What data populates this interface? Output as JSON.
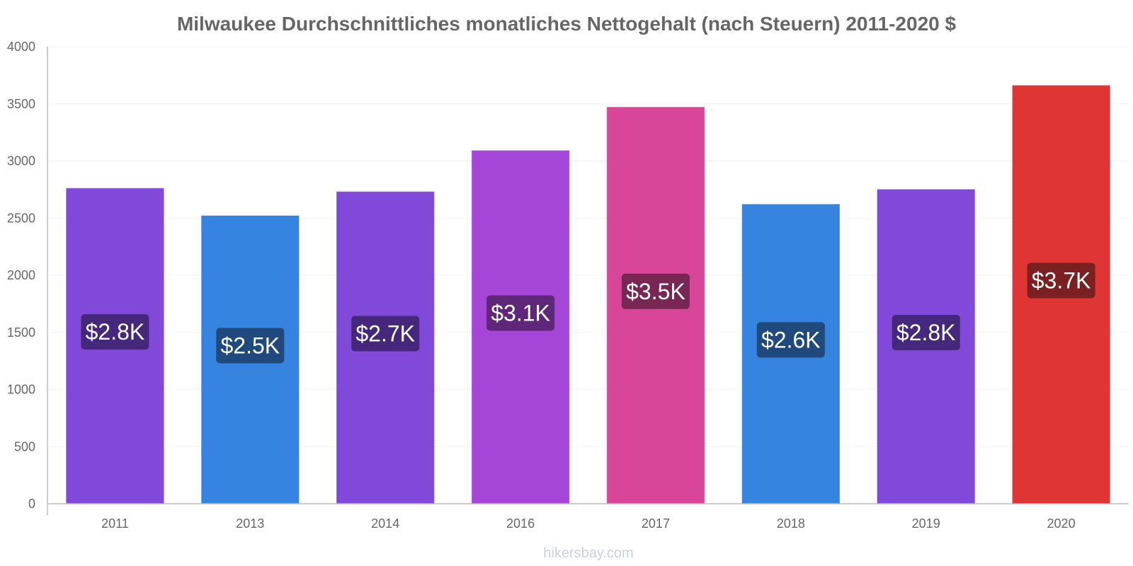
{
  "chart_data": {
    "type": "bar",
    "title": "Milwaukee Durchschnittliches monatliches Nettogehalt (nach Steuern) 2011-2020 $",
    "xlabel": "",
    "ylabel": "",
    "categories": [
      "2011",
      "2013",
      "2014",
      "2016",
      "2017",
      "2018",
      "2019",
      "2020"
    ],
    "values": [
      2760,
      2520,
      2730,
      3090,
      3470,
      2620,
      2750,
      3660
    ],
    "value_labels": [
      "$2.8K",
      "$2.5K",
      "$2.7K",
      "$3.1K",
      "$3.5K",
      "$2.6K",
      "$2.8K",
      "$3.7K"
    ],
    "bar_colors": [
      "#8049da",
      "#3584e0",
      "#8049da",
      "#a646d8",
      "#d84699",
      "#3584e0",
      "#8049da",
      "#e03535"
    ],
    "label_colors": [
      "#3e2470",
      "#1e4372",
      "#3e2470",
      "#56236f",
      "#6e234d",
      "#1e4372",
      "#3e2470",
      "#701e1e"
    ],
    "ylim": [
      0,
      4000
    ],
    "yticks": [
      "0",
      "500",
      "1000",
      "1500",
      "2000",
      "2500",
      "3000",
      "3500",
      "4000"
    ],
    "grid": true
  },
  "watermark": "hikersbay.com"
}
